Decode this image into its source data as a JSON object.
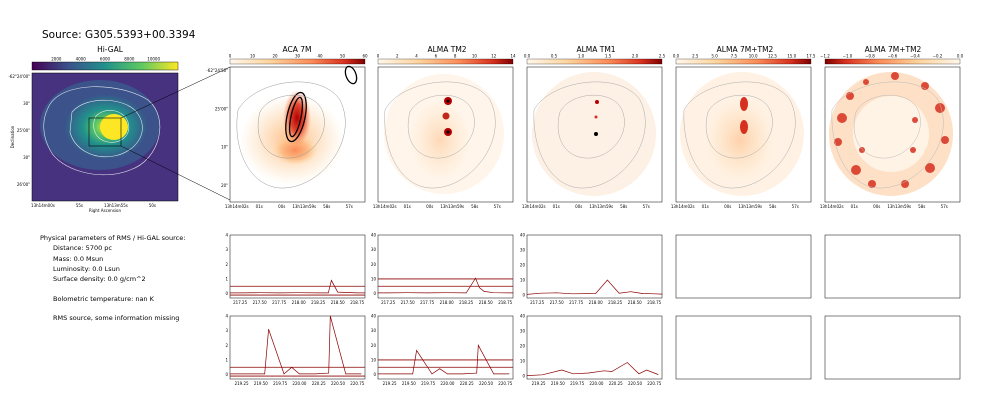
{
  "figure_title": "Source: G305.5393+00.3394",
  "panels": {
    "higal": {
      "title": "Hi-GAL",
      "cbar_ticks": [
        "2000",
        "4000",
        "6000",
        "8000",
        "10000"
      ],
      "y_ticks": [
        "-62°24'00\"",
        "30\"",
        "25'00\"",
        "30\"",
        "26'00\""
      ],
      "x_ticks": [
        "13h14m00s",
        "55s",
        "13h13m55s",
        "50s"
      ],
      "ylabel": "Declination",
      "xlabel": "Right Ascension"
    },
    "aca7m": {
      "title": "ACA 7M",
      "cbar_ticks": [
        "0",
        "10",
        "20",
        "30",
        "40",
        "50",
        "60"
      ],
      "y_ticks": [
        "-62°24'50\"",
        "25'00\"",
        "10\"",
        "20\""
      ],
      "x_ticks": [
        "13h14m02s",
        "01s",
        "00s",
        "13h13m59s",
        "58s",
        "57s"
      ]
    },
    "tm2": {
      "title": "ALMA TM2",
      "cbar_ticks": [
        "0",
        "2",
        "4",
        "6",
        "8",
        "10",
        "12",
        "14"
      ],
      "x_ticks": [
        "13h14m02s",
        "01s",
        "00s",
        "13h13m59s",
        "58s",
        "57s"
      ]
    },
    "tm1": {
      "title": "ALMA TM1",
      "cbar_ticks": [
        "0.0",
        "0.5",
        "1.0",
        "1.5",
        "2.0",
        "2.5"
      ],
      "x_ticks": [
        "13h14m02s",
        "01s",
        "00s",
        "13h13m59s",
        "58s",
        "57s"
      ]
    },
    "c7mtm2": {
      "title": "ALMA 7M+TM2",
      "cbar_ticks": [
        "0.0",
        "2.5",
        "5.0",
        "7.5",
        "10.0",
        "12.5",
        "15.0",
        "17.5"
      ],
      "x_ticks": [
        "13h14m02s",
        "01s",
        "00s",
        "13h13m59s",
        "58s",
        "57s"
      ]
    },
    "c7mtm2b": {
      "title": "ALMA 7M+TM2",
      "cbar_ticks": [
        "−1.2",
        "−1.0",
        "−0.8",
        "−0.6",
        "−0.4",
        "−0.2",
        "0.0"
      ],
      "x_ticks": [
        "13h14m02s",
        "01s",
        "00s",
        "13h13m59s",
        "58s",
        "57s"
      ]
    }
  },
  "info": {
    "header": "Physical parameters of RMS / Hi-GAL source:",
    "distance": "Distance: 5700 pc",
    "mass": "Mass: 0.0 Msun",
    "luminosity": "Luminosity: 0.0 Lsun",
    "surface_density": "Surface density: 0.0 g/cm^2",
    "bolometric": "Bolometric temperature: nan K",
    "rms_note": "RMS source, some information missing"
  },
  "colors": {
    "line": "#8b0000",
    "viridis_hi": "#fde725",
    "viridis_lo": "#440154",
    "orange": "#d9541a"
  },
  "chart_data": [
    {
      "type": "line",
      "id": "aca7m-spw1",
      "x": [
        217.12,
        217.25,
        217.5,
        217.75,
        218.0,
        218.25,
        218.38,
        218.42,
        218.5,
        218.75,
        218.85
      ],
      "y": [
        0.05,
        0.05,
        0.06,
        0.05,
        0.06,
        0.05,
        0.05,
        0.9,
        0.1,
        0.05,
        0.05
      ],
      "xlim": [
        217.12,
        218.85
      ],
      "ylim": [
        -0.3,
        4.0
      ],
      "x_ticks": [
        "217.25",
        "217.50",
        "217.75",
        "218.00",
        "218.25",
        "218.50",
        "218.75"
      ],
      "y_ticks": [
        "0",
        "1",
        "2",
        "3",
        "4"
      ],
      "hlines": [
        0.5,
        -0.1
      ]
    },
    {
      "type": "line",
      "id": "tm2-spw1",
      "x": [
        217.12,
        217.25,
        217.5,
        217.75,
        218.0,
        218.25,
        218.37,
        218.42,
        218.48,
        218.6,
        218.85
      ],
      "y": [
        0.5,
        0.5,
        0.6,
        0.5,
        0.6,
        0.5,
        10.5,
        4.0,
        1.5,
        0.6,
        0.5
      ],
      "xlim": [
        217.12,
        218.85
      ],
      "ylim": [
        -3,
        40
      ],
      "x_ticks": [
        "217.25",
        "217.50",
        "217.75",
        "218.00",
        "218.25",
        "218.50",
        "218.75"
      ],
      "y_ticks": [
        "0",
        "10",
        "20",
        "30",
        "40"
      ],
      "hlines": [
        10,
        5
      ]
    },
    {
      "type": "line",
      "id": "tm1-spw1",
      "x": [
        217.12,
        217.3,
        217.5,
        217.7,
        218.0,
        218.15,
        218.3,
        218.45,
        218.6,
        218.75,
        218.85
      ],
      "y": [
        0.4,
        1.2,
        1.5,
        0.8,
        1.0,
        10.0,
        1.2,
        2.2,
        1.0,
        0.8,
        0.6
      ],
      "xlim": [
        217.12,
        218.85
      ],
      "ylim": [
        -2,
        40
      ],
      "x_ticks": [
        "217.25",
        "217.50",
        "217.75",
        "218.00",
        "218.25",
        "218.50",
        "218.75"
      ],
      "y_ticks": [
        "0",
        "10",
        "20",
        "30",
        "40"
      ],
      "hlines": []
    },
    {
      "type": "line",
      "id": "aca7m-spw2",
      "x": [
        219.1,
        219.3,
        219.55,
        219.6,
        219.8,
        219.9,
        220.0,
        220.2,
        220.38,
        220.4,
        220.6,
        220.8
      ],
      "y": [
        0.05,
        0.05,
        0.05,
        3.1,
        0.05,
        0.5,
        0.05,
        0.05,
        0.1,
        4.0,
        0.05,
        0.05
      ],
      "xlim": [
        219.1,
        220.85
      ],
      "ylim": [
        -0.3,
        4.0
      ],
      "x_ticks": [
        "219.25",
        "219.50",
        "219.75",
        "220.00",
        "220.25",
        "220.50",
        "220.75"
      ],
      "y_ticks": [
        "0",
        "1",
        "2",
        "3",
        "4"
      ],
      "hlines": [
        0.5,
        -0.1
      ]
    },
    {
      "type": "line",
      "id": "tm2-spw2",
      "x": [
        219.1,
        219.3,
        219.55,
        219.6,
        219.8,
        219.9,
        220.0,
        220.2,
        220.38,
        220.4,
        220.6,
        220.8
      ],
      "y": [
        0.5,
        0.5,
        0.5,
        16.5,
        0.5,
        4.0,
        0.5,
        0.5,
        1.0,
        20.0,
        0.5,
        0.5
      ],
      "xlim": [
        219.1,
        220.85
      ],
      "ylim": [
        -3,
        40
      ],
      "x_ticks": [
        "219.25",
        "219.50",
        "219.75",
        "220.00",
        "220.25",
        "220.50",
        "220.75"
      ],
      "y_ticks": [
        "0",
        "10",
        "20",
        "30",
        "40"
      ],
      "hlines": [
        10,
        5
      ]
    },
    {
      "type": "line",
      "id": "tm1-spw2",
      "x": [
        219.1,
        219.3,
        219.55,
        219.7,
        219.9,
        220.1,
        220.2,
        220.4,
        220.55,
        220.65,
        220.8
      ],
      "y": [
        0.3,
        0.8,
        4.0,
        1.5,
        2.0,
        3.5,
        3.0,
        9.0,
        1.5,
        4.0,
        1.0
      ],
      "xlim": [
        219.1,
        220.85
      ],
      "ylim": [
        -2,
        40
      ],
      "x_ticks": [
        "219.25",
        "219.50",
        "219.75",
        "220.00",
        "220.25",
        "220.50",
        "220.75"
      ],
      "y_ticks": [
        "0",
        "10",
        "20",
        "30",
        "40"
      ],
      "hlines": []
    }
  ]
}
